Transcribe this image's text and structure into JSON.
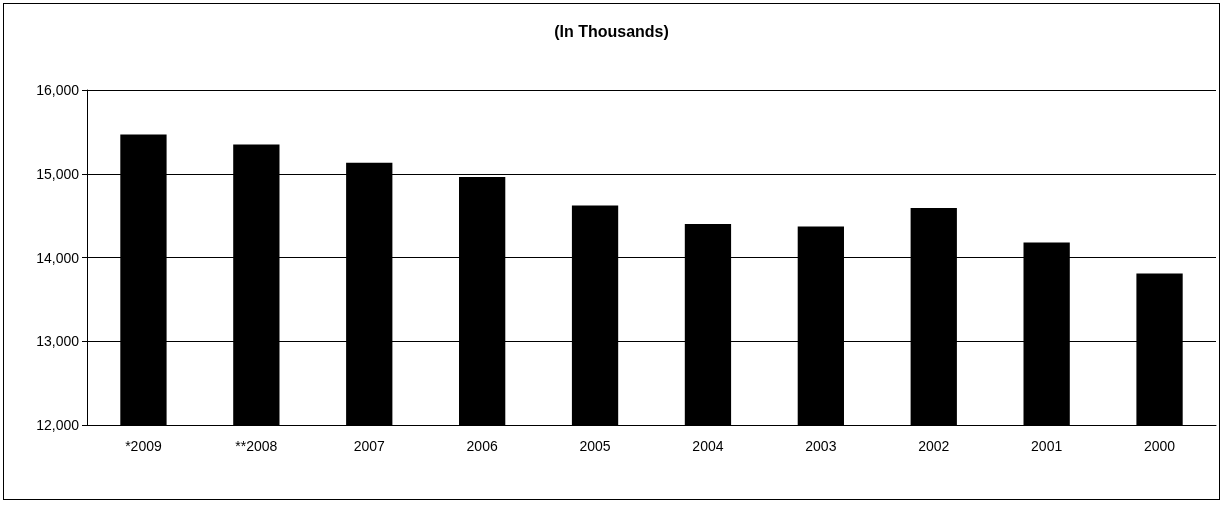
{
  "chart_data": {
    "type": "bar",
    "title": "(In Thousands)",
    "categories": [
      "*2009",
      "**2008",
      "2007",
      "2006",
      "2005",
      "2004",
      "2003",
      "2002",
      "2001",
      "2000"
    ],
    "values": [
      15470,
      15350,
      15130,
      14960,
      14620,
      14400,
      14370,
      14590,
      14180,
      13810
    ],
    "color": "#000000",
    "ylim": [
      12000,
      16000
    ],
    "yticks": [
      {
        "value": 12000,
        "label": "12,000"
      },
      {
        "value": 13000,
        "label": "13,000"
      },
      {
        "value": 14000,
        "label": "14,000"
      },
      {
        "value": 15000,
        "label": "15,000"
      },
      {
        "value": 16000,
        "label": "16,000"
      }
    ],
    "grid": "y"
  }
}
